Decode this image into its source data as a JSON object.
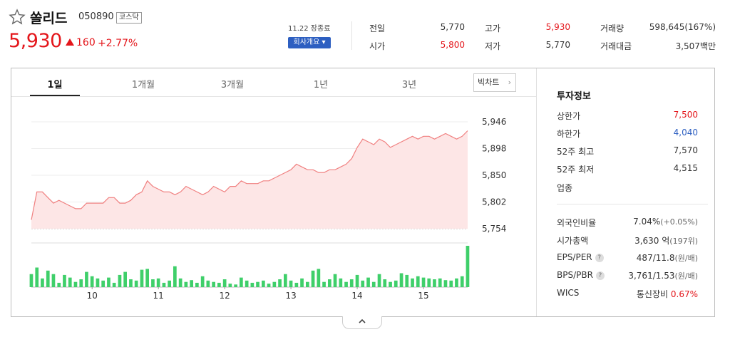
{
  "stock": {
    "name": "쏠리드",
    "code": "050890",
    "market": "코스닥",
    "price": "5,930",
    "change": "160",
    "rate": "+2.77%",
    "date_close": "11.22 장종료",
    "company_button": "회사개요 ▾"
  },
  "stats": [
    {
      "label": "전일",
      "value": "5,770",
      "color": "normal"
    },
    {
      "label": "고가",
      "value": "5,930",
      "color": "red"
    },
    {
      "label": "거래량",
      "value": "598,645(167%)",
      "color": "normal"
    },
    {
      "label": "시가",
      "value": "5,800",
      "color": "red"
    },
    {
      "label": "저가",
      "value": "5,770",
      "color": "normal"
    },
    {
      "label": "거래대금",
      "value": "3,507백만",
      "color": "normal"
    }
  ],
  "tabs": [
    "1일",
    "1개월",
    "3개월",
    "1년",
    "3년"
  ],
  "active_tab": "1일",
  "bigchart_label": "빅차트",
  "info": {
    "title": "투자정보",
    "rows": [
      {
        "label": "상한가",
        "value": "7,500",
        "color": "red"
      },
      {
        "label": "하한가",
        "value": "4,040",
        "color": "blue"
      },
      {
        "label": "52주 최고",
        "value": "7,570",
        "color": "normal"
      },
      {
        "label": "52주 최저",
        "value": "4,515",
        "color": "normal"
      },
      {
        "label": "업종",
        "value": "",
        "color": "normal"
      }
    ],
    "rows2": [
      {
        "label": "외국인비율",
        "value": "7.04%",
        "extra": "(+0.05%)",
        "help": false
      },
      {
        "label": "시가총액",
        "value": "3,630 억",
        "extra": "(197위)",
        "help": false
      },
      {
        "label": "EPS/PER",
        "value": "487/11.8",
        "extra": "(원/배)",
        "help": true
      },
      {
        "label": "BPS/PBR",
        "value": "3,761/1.53",
        "extra": "(원/배)",
        "help": true
      },
      {
        "label": "WICS",
        "value": "통신장비",
        "extra": "0.67%",
        "help": false
      }
    ],
    "help_glyph": "?"
  },
  "colors": {
    "up": "#e4161b",
    "down": "#2d5fc1",
    "volume": "#3fcf6a",
    "area": "#fde6e6",
    "line": "#f08080"
  },
  "fold_icon": "chevron-up-icon",
  "chart_data": {
    "type": "area",
    "ylim": [
      5754,
      5946
    ],
    "y_ticks": [
      "5,946",
      "5,898",
      "5,850",
      "5,802",
      "5,754"
    ],
    "x_ticks": [
      "10",
      "11",
      "12",
      "13",
      "14",
      "15"
    ],
    "x_tick_index": [
      11,
      23,
      35,
      47,
      59,
      71
    ],
    "prices": [
      5770,
      5820,
      5820,
      5810,
      5800,
      5805,
      5800,
      5795,
      5790,
      5790,
      5800,
      5800,
      5800,
      5800,
      5810,
      5810,
      5800,
      5800,
      5805,
      5815,
      5820,
      5840,
      5830,
      5825,
      5820,
      5820,
      5815,
      5820,
      5830,
      5825,
      5820,
      5815,
      5820,
      5830,
      5825,
      5820,
      5830,
      5830,
      5840,
      5835,
      5835,
      5835,
      5840,
      5840,
      5845,
      5850,
      5855,
      5860,
      5870,
      5865,
      5860,
      5860,
      5855,
      5855,
      5860,
      5860,
      5865,
      5870,
      5880,
      5900,
      5915,
      5910,
      5905,
      5915,
      5910,
      5900,
      5905,
      5910,
      5915,
      5920,
      5915,
      5920,
      5920,
      5915,
      5920,
      5925,
      5920,
      5915,
      5920,
      5930
    ],
    "volumes": [
      30,
      45,
      20,
      38,
      30,
      10,
      28,
      22,
      12,
      18,
      35,
      25,
      20,
      15,
      22,
      10,
      28,
      35,
      18,
      15,
      40,
      42,
      18,
      20,
      10,
      15,
      48,
      20,
      12,
      16,
      10,
      25,
      15,
      12,
      10,
      18,
      8,
      6,
      22,
      15,
      10,
      12,
      15,
      8,
      12,
      18,
      30,
      15,
      10,
      20,
      12,
      38,
      42,
      12,
      18,
      30,
      20,
      12,
      18,
      28,
      15,
      22,
      12,
      30,
      18,
      12,
      15,
      32,
      28,
      20,
      25,
      22,
      20,
      18,
      20,
      16,
      15,
      20,
      25,
      95
    ]
  }
}
